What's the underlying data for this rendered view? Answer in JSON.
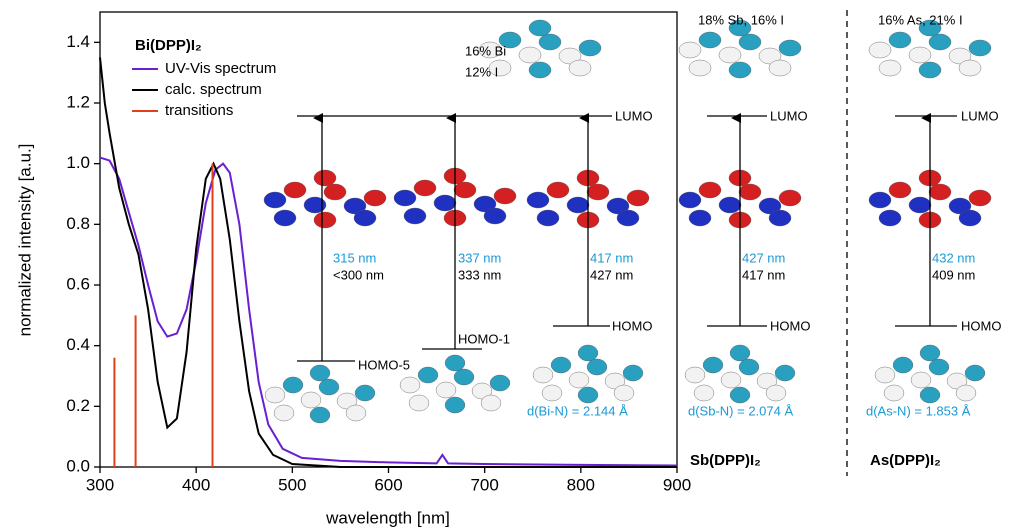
{
  "chart_data": {
    "type": "line",
    "xlabel": "wavelength [nm]",
    "ylabel": "normalized intensity [a.u.]",
    "legend_title": "Bi(DPP)I₂",
    "legend": "upper left",
    "xlim": [
      300,
      900
    ],
    "xticks": [
      300,
      400,
      500,
      600,
      700,
      800,
      900
    ],
    "ylim": [
      0,
      1.5
    ],
    "yticks": [
      {
        "value": 0,
        "label": "0.0"
      },
      0.2,
      0.4,
      0.6,
      0.8,
      {
        "value": 1,
        "label": "1.0"
      },
      1.2,
      1.4
    ],
    "series": [
      {
        "name": "UV-Vis spectrum",
        "color": "#6a1fd0",
        "type": "line",
        "x": [
          300,
          310,
          320,
          330,
          340,
          350,
          360,
          370,
          380,
          390,
          400,
          410,
          420,
          428,
          435,
          445,
          455,
          465,
          475,
          490,
          510,
          550,
          600,
          650,
          656,
          662,
          700,
          800,
          900
        ],
        "values": [
          1.02,
          1.01,
          0.95,
          0.84,
          0.73,
          0.6,
          0.48,
          0.43,
          0.44,
          0.52,
          0.68,
          0.87,
          0.98,
          1.0,
          0.97,
          0.8,
          0.52,
          0.28,
          0.14,
          0.06,
          0.03,
          0.02,
          0.015,
          0.012,
          0.04,
          0.012,
          0.01,
          0.007,
          0.005
        ]
      },
      {
        "name": "calc. spectrum",
        "color": "#000000",
        "type": "line",
        "x": [
          300,
          305,
          310,
          320,
          330,
          340,
          350,
          360,
          370,
          380,
          390,
          400,
          410,
          418,
          425,
          435,
          445,
          455,
          465,
          480,
          500,
          550,
          900
        ],
        "values": [
          1.35,
          1.2,
          1.1,
          0.92,
          0.8,
          0.7,
          0.52,
          0.28,
          0.13,
          0.16,
          0.38,
          0.72,
          0.95,
          1.0,
          0.95,
          0.75,
          0.48,
          0.25,
          0.11,
          0.04,
          0.01,
          0,
          0
        ]
      },
      {
        "name": "transitions",
        "color": "#e0401a",
        "type": "stem",
        "x": [
          315,
          337,
          417
        ],
        "values": [
          0.36,
          0.5,
          1.0
        ]
      }
    ]
  },
  "diagram": {
    "bi": {
      "lumo_share": [
        "16% Bi",
        "12% I"
      ],
      "lumo": "LUMO",
      "transitions": [
        {
          "homo": "HOMO-5",
          "exp": "315 nm",
          "calc": "<300 nm"
        },
        {
          "homo": "HOMO-1",
          "exp": "337 nm",
          "calc": "333 nm"
        },
        {
          "homo": "HOMO",
          "exp": "417 nm",
          "calc": "427 nm"
        }
      ],
      "bond": "d(Bi-N) = 2.144 Å"
    },
    "sb": {
      "name": "Sb(DPP)I₂",
      "lumo_share": "18% Sb, 16% I",
      "lumo": "LUMO",
      "homo": "HOMO",
      "exp": "427 nm",
      "calc": "417 nm",
      "bond": "d(Sb-N) = 2.074 Å"
    },
    "as": {
      "name": "As(DPP)I₂",
      "lumo_share": "16% As, 21% I",
      "lumo": "LUMO",
      "homo": "HOMO",
      "exp": "432 nm",
      "calc": "409 nm",
      "bond": "d(As-N) = 1.853 Å"
    }
  }
}
